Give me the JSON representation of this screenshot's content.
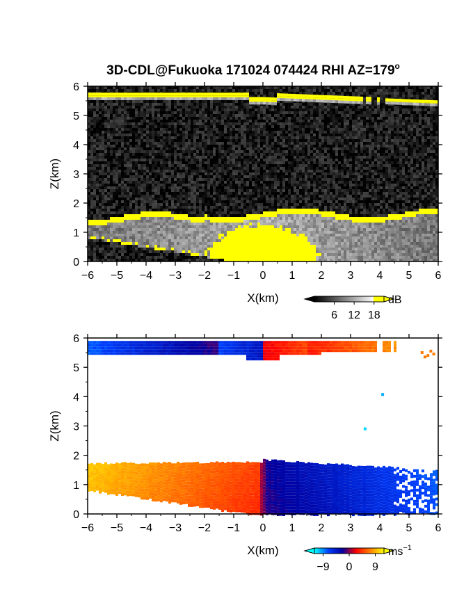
{
  "figure": {
    "title": "3D-CDL@Fukuoka 171024 074424 RHI AZ=179",
    "title_superscript": "o"
  },
  "chart_data": [
    {
      "type": "heatmap",
      "field": "signal intensity",
      "xlabel": "X(km)",
      "ylabel": "Z(km)",
      "xlim": [
        -6,
        6
      ],
      "ylim": [
        0,
        6
      ],
      "x_ticks": [
        -6,
        -5,
        -4,
        -3,
        -2,
        -1,
        0,
        1,
        2,
        3,
        4,
        5,
        6
      ],
      "y_ticks": [
        0,
        1,
        2,
        3,
        4,
        5,
        6
      ],
      "colorbar": {
        "unit": "dB",
        "ticks": [
          6,
          12,
          18
        ],
        "range": [
          0,
          21
        ],
        "colormap": "grayscale, yellow above 18",
        "colors": [
          "#000000",
          "#808080",
          "#ffffff",
          "#ffff00"
        ]
      },
      "layers": [
        {
          "feature": "upper layer",
          "x_range": [
            -6,
            6
          ],
          "z_range": [
            5.3,
            5.9
          ],
          "value": 20
        },
        {
          "feature": "lower layer",
          "x_range": [
            -6,
            6
          ],
          "z_range": [
            0,
            1.8
          ],
          "value": 16
        },
        {
          "feature": "background noise",
          "x_range": [
            -6,
            6
          ],
          "z_range": [
            0,
            6
          ],
          "value": 2
        }
      ]
    },
    {
      "type": "heatmap",
      "field": "radial velocity",
      "xlabel": "X(km)",
      "ylabel": "Z(km)",
      "xlim": [
        -6,
        6
      ],
      "ylim": [
        0,
        6
      ],
      "x_ticks": [
        -6,
        -5,
        -4,
        -3,
        -2,
        -1,
        0,
        1,
        2,
        3,
        4,
        5,
        6
      ],
      "y_ticks": [
        0,
        1,
        2,
        3,
        4,
        5,
        6
      ],
      "colorbar": {
        "unit": "ms",
        "unit_superscript": "-1",
        "ticks": [
          -9,
          0,
          9
        ],
        "range": [
          -12,
          12
        ],
        "colors": [
          "#00ffff",
          "#0040ff",
          "#0000a0",
          "#ff0000",
          "#ff8000",
          "#ffff00"
        ]
      },
      "layers": [
        {
          "feature": "upper layer",
          "x_range": [
            -6,
            4.7
          ],
          "z_range": [
            5.35,
            5.9
          ],
          "value_at_x_min": -8,
          "value_at_x_max": 8
        },
        {
          "feature": "lower layer",
          "x_range": [
            -6,
            6
          ],
          "z_range": [
            0,
            1.85
          ],
          "value_at_x_min": 9,
          "value_at_x_max": -9
        }
      ]
    }
  ]
}
